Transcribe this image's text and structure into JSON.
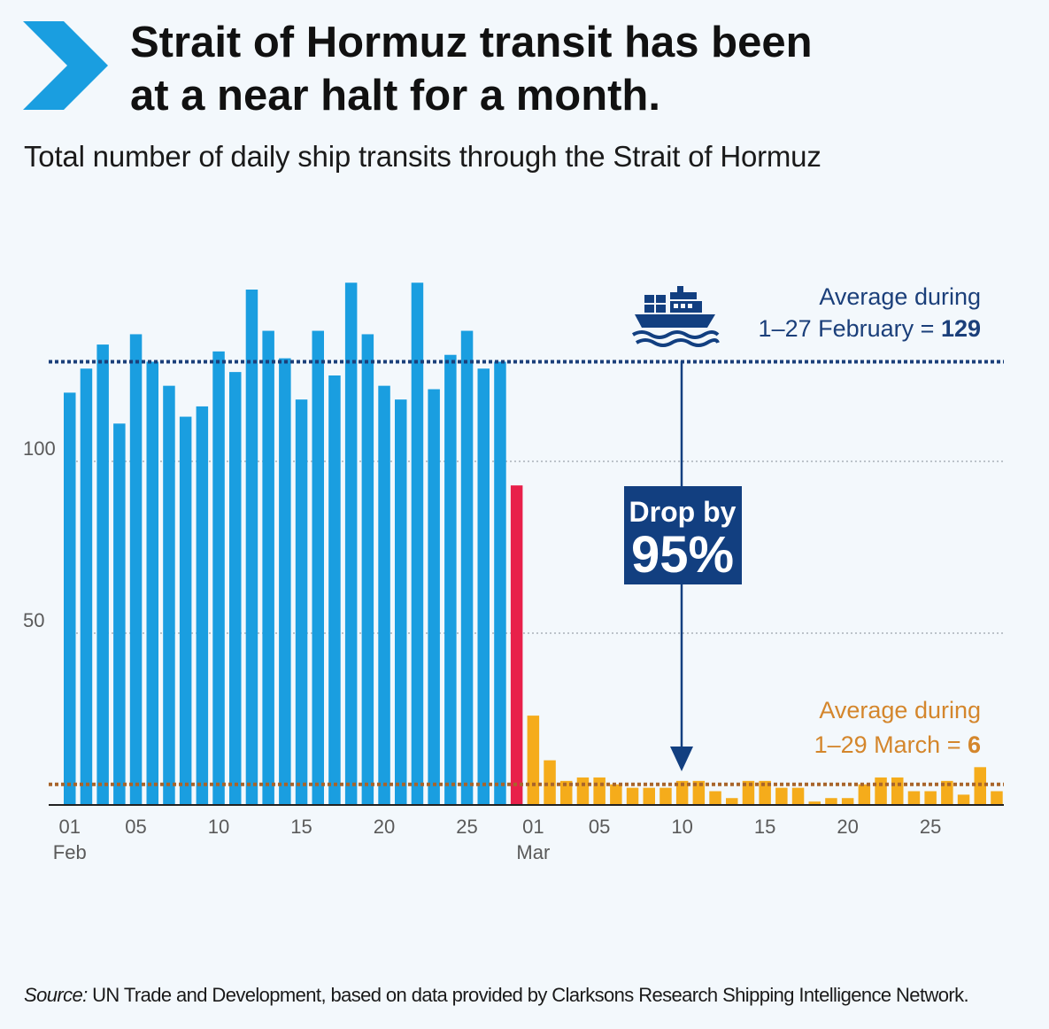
{
  "header": {
    "title_line1": "Strait of Hormuz transit has been",
    "title_line2": "at a near halt for a month.",
    "subtitle": "Total number of daily ship transits through the Strait of Hormuz"
  },
  "colors": {
    "chevron": "#1a9ee0",
    "february_bar": "#1a9ee0",
    "transition_bar": "#e8204a",
    "march_bar": "#f5ac1b",
    "feb_average_line": "#1b3f7a",
    "mar_average_line": "#a8642a",
    "drop_box": "#123f80",
    "arrow": "#123f80",
    "gridline": "#9aa3ac",
    "axis_text": "#5a5a5a"
  },
  "annotations": {
    "feb_avg_line1": "Average during",
    "feb_avg_line2_prefix": "1–27 February = ",
    "feb_avg_value": "129",
    "mar_avg_line1": "Average during",
    "mar_avg_line2_prefix": "1–29 March = ",
    "mar_avg_value": "6",
    "drop_line1": "Drop by",
    "drop_line2": "95%",
    "ship_icon": "cargo-ship-icon"
  },
  "source": {
    "label": "Source:",
    "text": " UN Trade and Development, based on data provided by Clarksons Research Shipping Intelligence Network."
  },
  "chart_data": {
    "type": "bar",
    "title": "Strait of Hormuz transit has been at a near halt for a month.",
    "subtitle": "Total number of daily ship transits through the Strait of Hormuz",
    "ylim": [
      0,
      150
    ],
    "yticks": [
      50,
      100
    ],
    "grid": true,
    "x_tick_labels": [
      {
        "day": 0,
        "label": "01",
        "sublabel": "Feb"
      },
      {
        "day": 4,
        "label": "05",
        "sublabel": ""
      },
      {
        "day": 9,
        "label": "10",
        "sublabel": ""
      },
      {
        "day": 14,
        "label": "15",
        "sublabel": ""
      },
      {
        "day": 19,
        "label": "20",
        "sublabel": ""
      },
      {
        "day": 24,
        "label": "25",
        "sublabel": ""
      },
      {
        "day": 28,
        "label": "01",
        "sublabel": "Mar"
      },
      {
        "day": 32,
        "label": "05",
        "sublabel": ""
      },
      {
        "day": 37,
        "label": "10",
        "sublabel": ""
      },
      {
        "day": 42,
        "label": "15",
        "sublabel": ""
      },
      {
        "day": 47,
        "label": "20",
        "sublabel": ""
      },
      {
        "day": 52,
        "label": "25",
        "sublabel": ""
      }
    ],
    "series": [
      {
        "period": "february",
        "dates": [
          "Feb 01",
          "Feb 02",
          "Feb 03",
          "Feb 04",
          "Feb 05",
          "Feb 06",
          "Feb 07",
          "Feb 08",
          "Feb 09",
          "Feb 10",
          "Feb 11",
          "Feb 12",
          "Feb 13",
          "Feb 14",
          "Feb 15",
          "Feb 16",
          "Feb 17",
          "Feb 18",
          "Feb 19",
          "Feb 20",
          "Feb 21",
          "Feb 22",
          "Feb 23",
          "Feb 24",
          "Feb 25",
          "Feb 26",
          "Feb 27"
        ],
        "values": [
          120,
          127,
          134,
          111,
          137,
          129,
          122,
          113,
          116,
          132,
          126,
          150,
          138,
          130,
          118,
          138,
          125,
          152,
          137,
          122,
          118,
          152,
          121,
          131,
          138,
          127,
          129
        ]
      },
      {
        "period": "transition",
        "dates": [
          "Feb 28"
        ],
        "values": [
          93
        ]
      },
      {
        "period": "march",
        "dates": [
          "Mar 01",
          "Mar 02",
          "Mar 03",
          "Mar 04",
          "Mar 05",
          "Mar 06",
          "Mar 07",
          "Mar 08",
          "Mar 09",
          "Mar 10",
          "Mar 11",
          "Mar 12",
          "Mar 13",
          "Mar 14",
          "Mar 15",
          "Mar 16",
          "Mar 17",
          "Mar 18",
          "Mar 19",
          "Mar 20",
          "Mar 21",
          "Mar 22",
          "Mar 23",
          "Mar 24",
          "Mar 25",
          "Mar 26",
          "Mar 27",
          "Mar 28",
          "Mar 29"
        ],
        "values": [
          26,
          13,
          7,
          8,
          8,
          6,
          5,
          5,
          5,
          7,
          7,
          4,
          2,
          7,
          7,
          5,
          5,
          1,
          2,
          2,
          6,
          8,
          8,
          4,
          4,
          7,
          3,
          11,
          4
        ]
      }
    ],
    "reference_lines": [
      {
        "label": "Average during 1–27 February = 129",
        "value": 129
      },
      {
        "label": "Average during 1–29 March = 6",
        "value": 6
      }
    ],
    "annotation": "Drop by 95%"
  }
}
